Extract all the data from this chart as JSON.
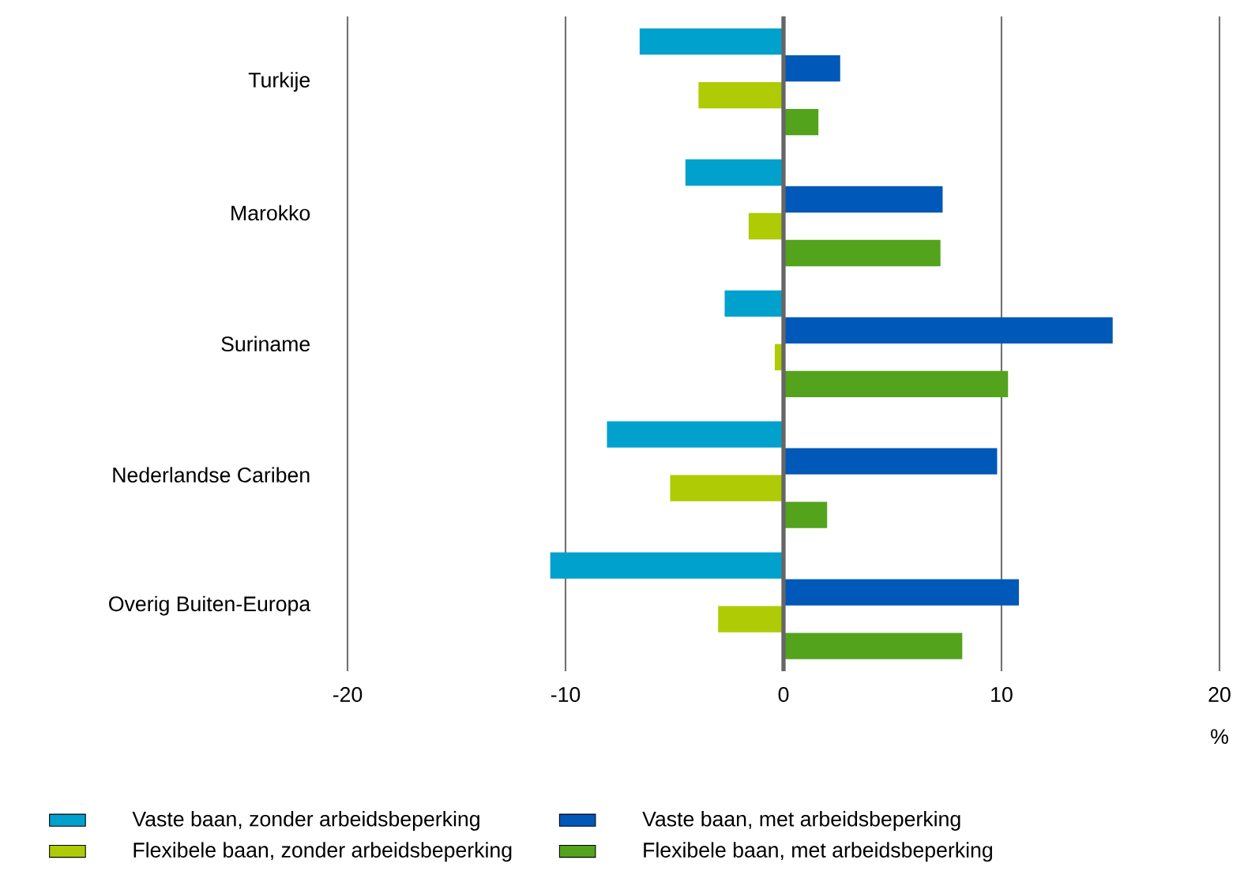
{
  "chart_data": {
    "type": "bar",
    "orientation": "horizontal",
    "xlabel": "%",
    "categories": [
      "Turkije",
      "Marokko",
      "Suriname",
      "Nederlandse Cariben",
      "Overig Buiten-Europa"
    ],
    "series": [
      {
        "name": "Vaste baan, zonder arbeidsbeperking",
        "color": "#00a1cd",
        "values": [
          -6.6,
          -4.5,
          -2.7,
          -8.1,
          -10.7
        ]
      },
      {
        "name": "Vaste baan, met arbeidsbeperking",
        "color": "#0058b8",
        "values": [
          2.6,
          7.3,
          15.1,
          9.8,
          10.8
        ]
      },
      {
        "name": "Flexibele baan, zonder arbeidsbeperking",
        "color": "#afcb05",
        "values": [
          -3.9,
          -1.6,
          -0.4,
          -5.2,
          -3.0
        ]
      },
      {
        "name": "Flexibele baan, met arbeidsbeperking",
        "color": "#53a31d",
        "values": [
          1.6,
          7.2,
          10.3,
          2.0,
          8.2
        ]
      }
    ],
    "xlim": [
      -20,
      20
    ],
    "xticks": [
      -20,
      -10,
      0,
      10,
      20
    ],
    "grid": "x",
    "legend": "bottom"
  }
}
